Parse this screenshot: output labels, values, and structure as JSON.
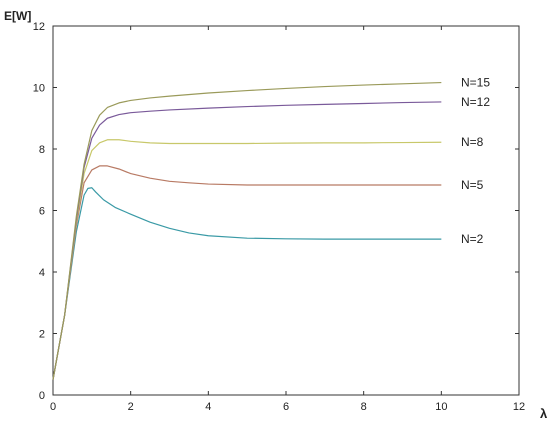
{
  "chart_data": {
    "type": "line",
    "xlabel": "λ",
    "ylabel": "E[W]",
    "xlim": [
      0,
      12
    ],
    "ylim": [
      0,
      12
    ],
    "xticks": [
      0,
      2,
      4,
      6,
      8,
      10,
      12
    ],
    "yticks": [
      0,
      2,
      4,
      6,
      8,
      10,
      12
    ],
    "grid": false,
    "legend": "none",
    "series": [
      {
        "name": "N=2",
        "color": "#3a9aa6",
        "x": [
          0,
          0.3,
          0.6,
          0.8,
          0.9,
          1.0,
          1.1,
          1.3,
          1.6,
          2.0,
          2.5,
          3.0,
          3.5,
          4.0,
          5.0,
          6.0,
          7.0,
          8.0,
          9.0,
          10.0
        ],
        "y": [
          0.5,
          2.6,
          5.3,
          6.5,
          6.72,
          6.74,
          6.6,
          6.35,
          6.1,
          5.88,
          5.62,
          5.42,
          5.27,
          5.18,
          5.1,
          5.08,
          5.07,
          5.07,
          5.07,
          5.07
        ]
      },
      {
        "name": "N=5",
        "color": "#b87a64",
        "x": [
          0,
          0.3,
          0.6,
          0.8,
          1.0,
          1.2,
          1.4,
          1.7,
          2.0,
          2.5,
          3.0,
          3.5,
          4.0,
          5.0,
          6.0,
          7.0,
          8.0,
          9.0,
          10.0
        ],
        "y": [
          0.5,
          2.6,
          5.5,
          6.9,
          7.32,
          7.45,
          7.45,
          7.35,
          7.2,
          7.05,
          6.95,
          6.9,
          6.86,
          6.83,
          6.83,
          6.83,
          6.83,
          6.83,
          6.83
        ]
      },
      {
        "name": "N=8",
        "color": "#c8c86a",
        "x": [
          0,
          0.3,
          0.6,
          0.8,
          1.0,
          1.2,
          1.4,
          1.7,
          2.0,
          2.5,
          3.0,
          4.0,
          5.0,
          6.0,
          7.0,
          8.0,
          9.0,
          10.0
        ],
        "y": [
          0.5,
          2.6,
          5.6,
          7.2,
          7.95,
          8.2,
          8.3,
          8.3,
          8.25,
          8.2,
          8.18,
          8.18,
          8.18,
          8.19,
          8.2,
          8.2,
          8.21,
          8.22
        ]
      },
      {
        "name": "N=12",
        "color": "#7a5a9a",
        "x": [
          0,
          0.3,
          0.6,
          0.8,
          1.0,
          1.2,
          1.4,
          1.7,
          2.0,
          2.5,
          3.0,
          4.0,
          5.0,
          6.0,
          7.0,
          8.0,
          9.0,
          10.0
        ],
        "y": [
          0.5,
          2.6,
          5.7,
          7.4,
          8.35,
          8.78,
          9.0,
          9.12,
          9.18,
          9.23,
          9.27,
          9.33,
          9.38,
          9.42,
          9.45,
          9.48,
          9.51,
          9.53
        ]
      },
      {
        "name": "N=15",
        "color": "#9a9a5a",
        "x": [
          0,
          0.3,
          0.6,
          0.8,
          1.0,
          1.2,
          1.4,
          1.7,
          2.0,
          2.5,
          3.0,
          4.0,
          5.0,
          6.0,
          7.0,
          8.0,
          9.0,
          10.0
        ],
        "y": [
          0.5,
          2.6,
          5.8,
          7.5,
          8.6,
          9.1,
          9.35,
          9.5,
          9.58,
          9.66,
          9.72,
          9.82,
          9.9,
          9.97,
          10.03,
          10.08,
          10.12,
          10.16
        ]
      }
    ]
  }
}
